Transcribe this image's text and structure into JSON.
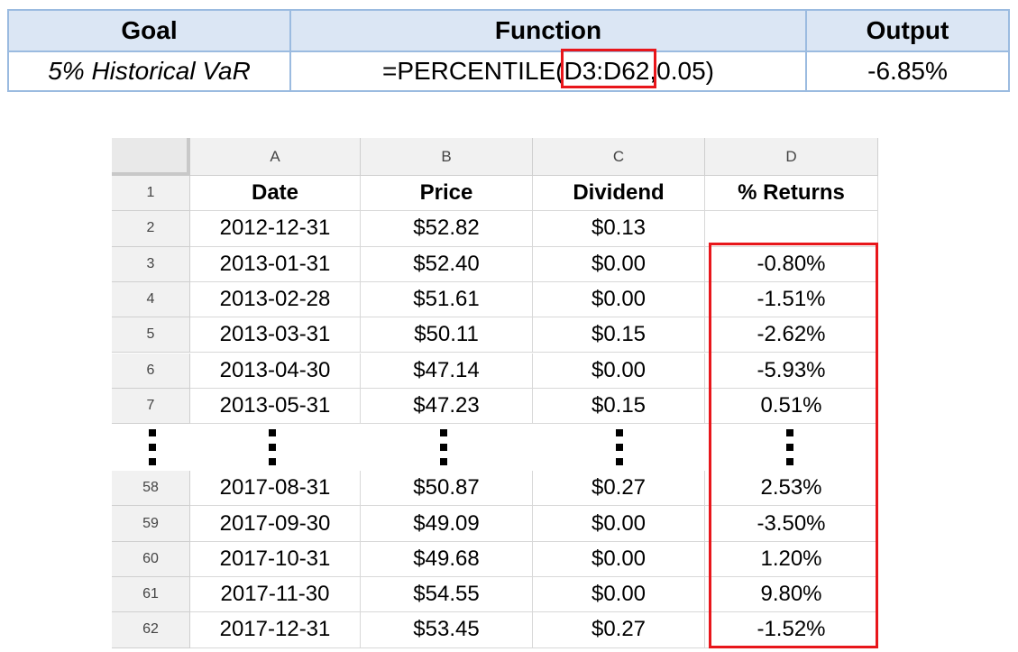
{
  "summary": {
    "headers": {
      "goal": "Goal",
      "function": "Function",
      "output": "Output"
    },
    "goal": "5% Historical VaR",
    "formula": {
      "prefix": "=PERCENTILE(",
      "range": "D3:D62",
      "suffix": ",0.05)"
    },
    "output": "-6.85%"
  },
  "sheet": {
    "columns": [
      "A",
      "B",
      "C",
      "D"
    ],
    "header_row": {
      "num": "1",
      "cells": [
        "Date",
        "Price",
        "Dividend",
        "% Returns"
      ]
    },
    "rows_top": [
      {
        "num": "2",
        "date": "2012-12-31",
        "price": "$52.82",
        "dividend": "$0.13",
        "ret": ""
      },
      {
        "num": "3",
        "date": "2013-01-31",
        "price": "$52.40",
        "dividend": "$0.00",
        "ret": "-0.80%"
      },
      {
        "num": "4",
        "date": "2013-02-28",
        "price": "$51.61",
        "dividend": "$0.00",
        "ret": "-1.51%"
      },
      {
        "num": "5",
        "date": "2013-03-31",
        "price": "$50.11",
        "dividend": "$0.15",
        "ret": "-2.62%"
      },
      {
        "num": "6",
        "date": "2013-04-30",
        "price": "$47.14",
        "dividend": "$0.00",
        "ret": "-5.93%"
      },
      {
        "num": "7",
        "date": "2013-05-31",
        "price": "$47.23",
        "dividend": "$0.15",
        "ret": "0.51%"
      }
    ],
    "rows_bottom": [
      {
        "num": "58",
        "date": "2017-08-31",
        "price": "$50.87",
        "dividend": "$0.27",
        "ret": "2.53%"
      },
      {
        "num": "59",
        "date": "2017-09-30",
        "price": "$49.09",
        "dividend": "$0.00",
        "ret": "-3.50%"
      },
      {
        "num": "60",
        "date": "2017-10-31",
        "price": "$49.68",
        "dividend": "$0.00",
        "ret": "1.20%"
      },
      {
        "num": "61",
        "date": "2017-11-30",
        "price": "$54.55",
        "dividend": "$0.00",
        "ret": "9.80%"
      },
      {
        "num": "62",
        "date": "2017-12-31",
        "price": "$53.45",
        "dividend": "$0.27",
        "ret": "-1.52%"
      }
    ]
  },
  "colors": {
    "highlight": "#e8161b",
    "summary_border": "#9bbbe0",
    "summary_header": "#dbe6f4"
  }
}
